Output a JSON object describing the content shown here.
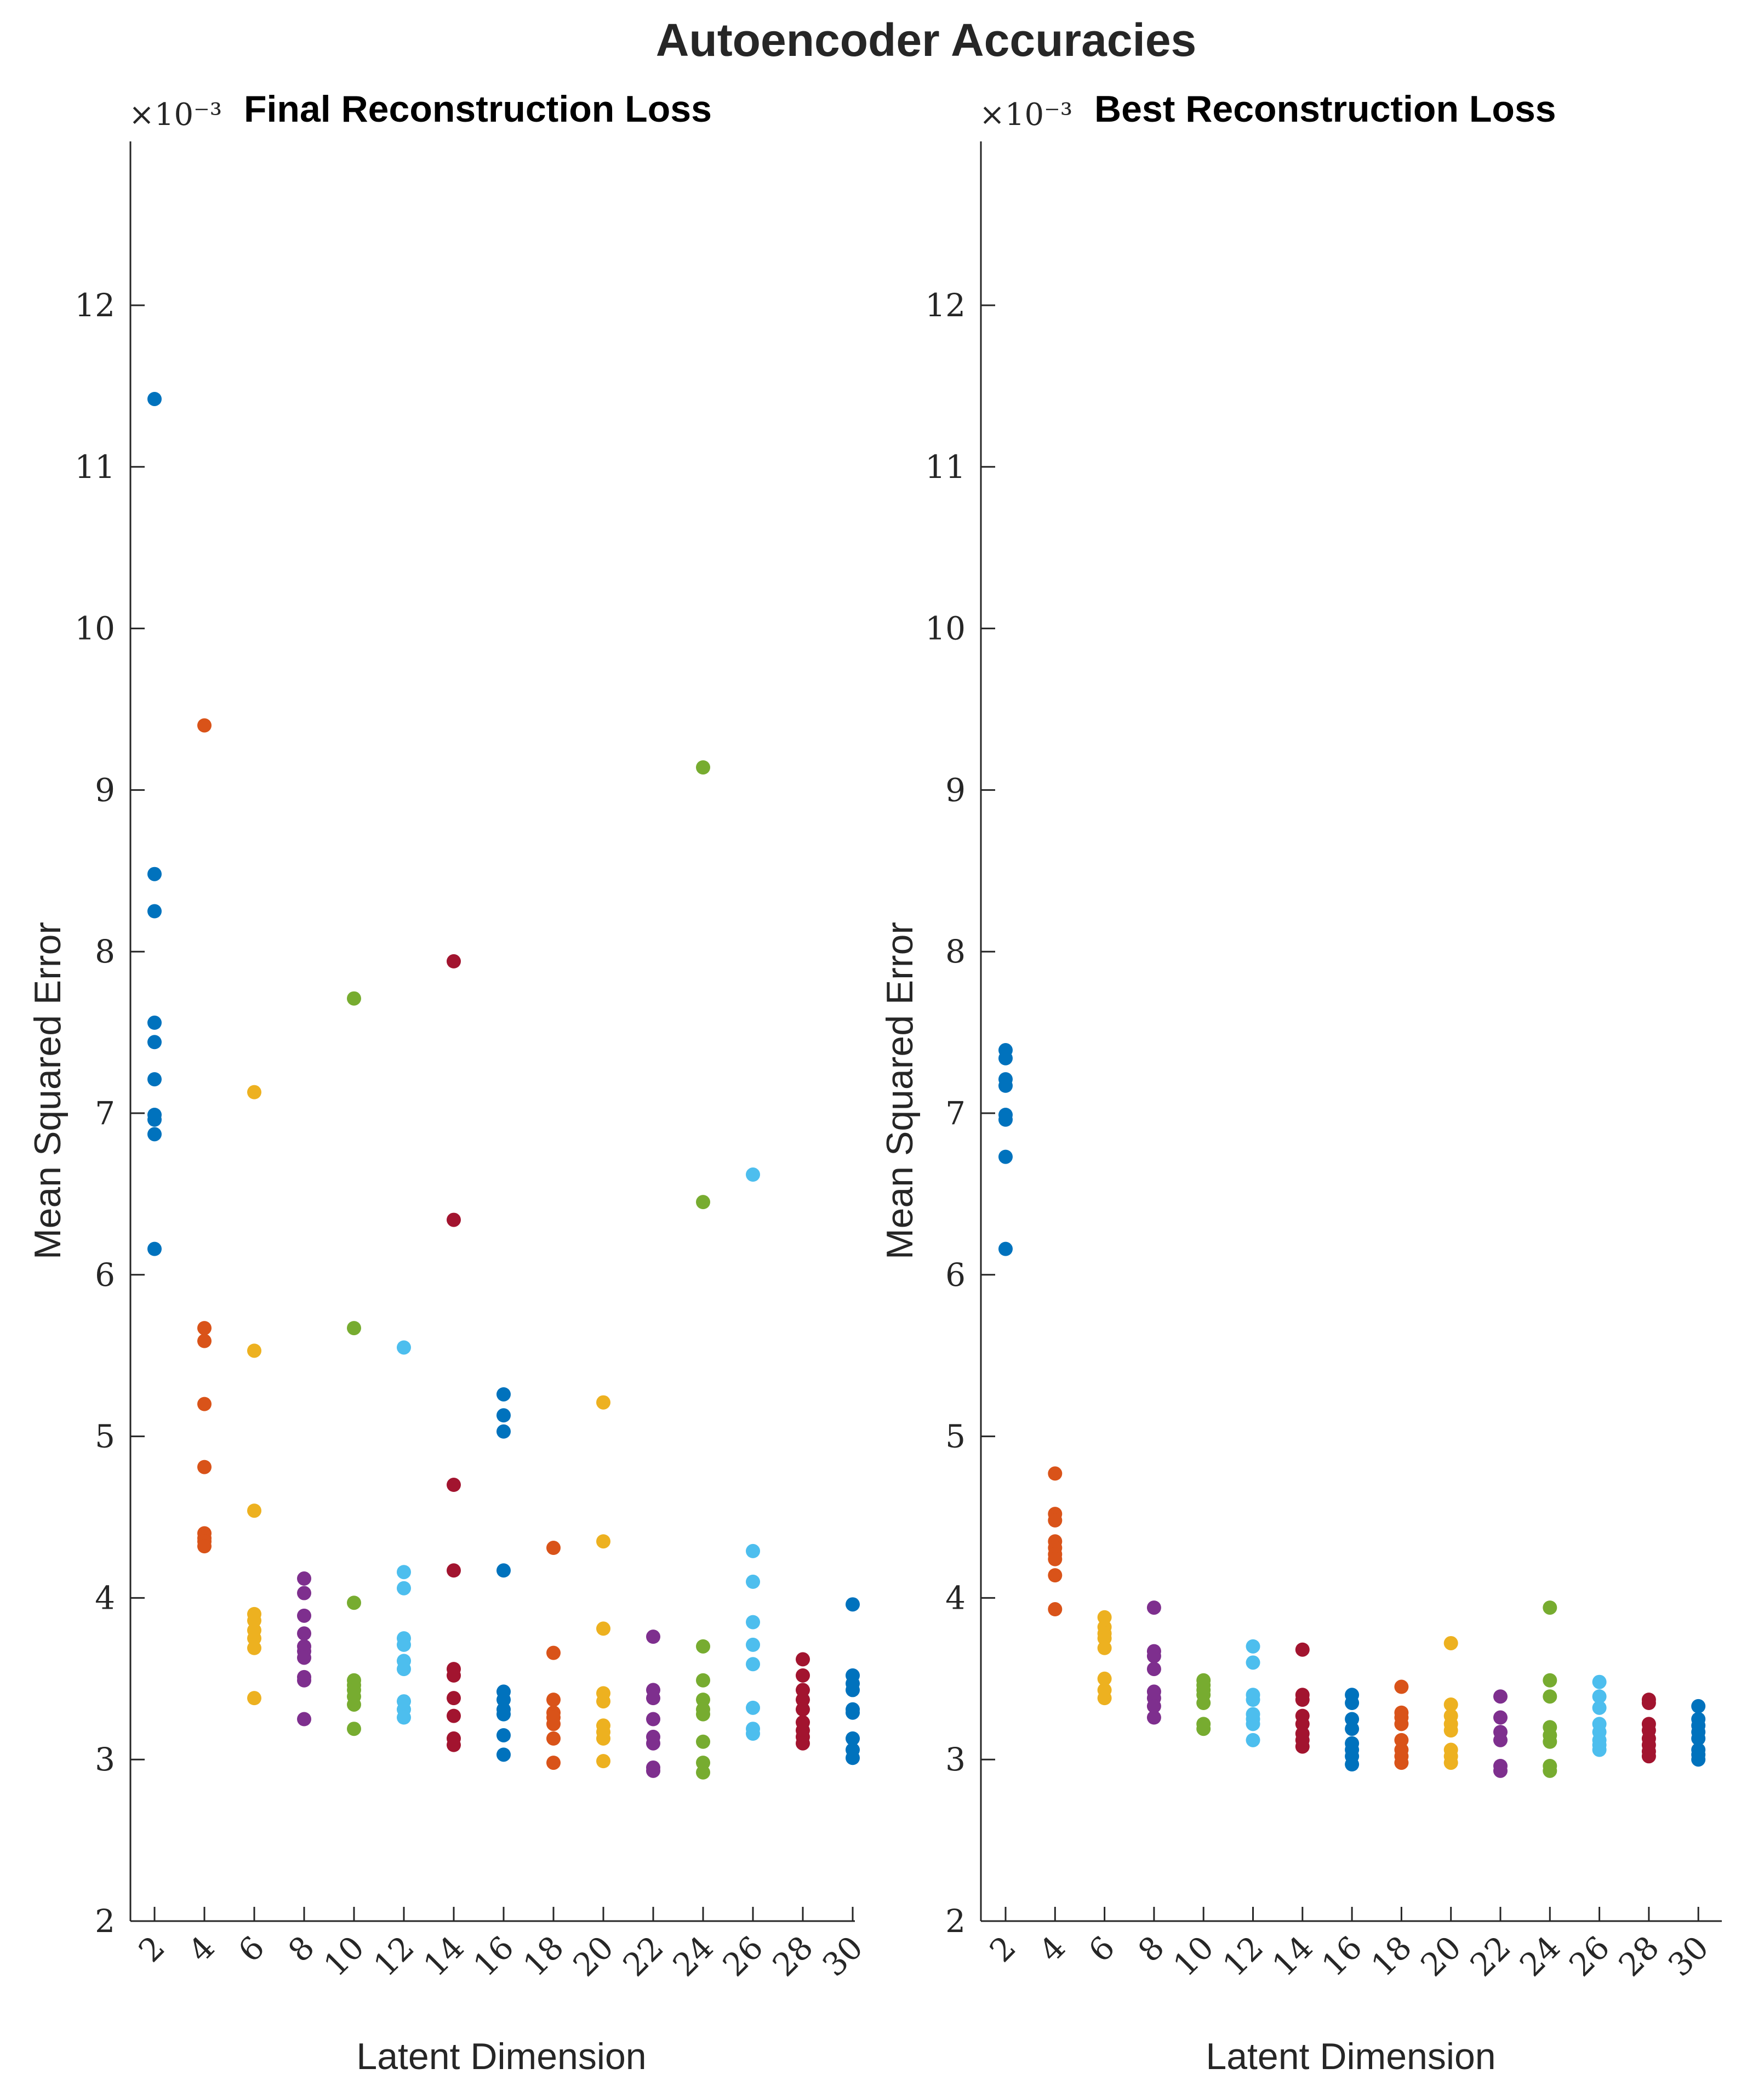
{
  "title": "Autoencoder Accuracies",
  "colors": [
    "#0072BD",
    "#D95319",
    "#EDB120",
    "#7E2F8E",
    "#77AC30",
    "#4DBEEE",
    "#A2142F"
  ],
  "chart_data": [
    {
      "type": "scatter",
      "title": "Final Reconstruction Loss",
      "xlabel": "Latent Dimension",
      "ylabel": "Mean Squared Error",
      "exponent_label": "×10⁻³",
      "ylim": [
        2,
        13
      ],
      "yticks": [
        "2",
        "3",
        "4",
        "5",
        "6",
        "7",
        "8",
        "9",
        "10",
        "11",
        "12"
      ],
      "xticks": [
        "2",
        "4",
        "6",
        "8",
        "10",
        "12",
        "14",
        "16",
        "18",
        "20",
        "22",
        "24",
        "26",
        "28",
        "30"
      ],
      "series": [
        {
          "x": 2,
          "values": [
            11.42,
            8.48,
            8.25,
            7.56,
            7.44,
            7.21,
            6.99,
            6.96,
            6.87,
            6.16
          ]
        },
        {
          "x": 4,
          "values": [
            9.4,
            5.67,
            5.59,
            5.2,
            4.81,
            4.4,
            4.37,
            4.35,
            4.32
          ]
        },
        {
          "x": 6,
          "values": [
            7.13,
            5.53,
            4.54,
            3.9,
            3.86,
            3.8,
            3.75,
            3.69,
            3.38
          ]
        },
        {
          "x": 8,
          "values": [
            4.12,
            4.03,
            3.89,
            3.78,
            3.7,
            3.67,
            3.63,
            3.51,
            3.49,
            3.25
          ]
        },
        {
          "x": 10,
          "values": [
            7.71,
            5.67,
            3.97,
            3.49,
            3.46,
            3.43,
            3.39,
            3.34,
            3.19
          ]
        },
        {
          "x": 12,
          "values": [
            5.55,
            4.16,
            4.06,
            3.75,
            3.71,
            3.61,
            3.56,
            3.36,
            3.31,
            3.26
          ]
        },
        {
          "x": 14,
          "values": [
            7.94,
            6.34,
            4.7,
            4.17,
            3.56,
            3.52,
            3.38,
            3.27,
            3.13,
            3.09
          ]
        },
        {
          "x": 16,
          "values": [
            5.26,
            5.13,
            5.03,
            4.17,
            3.42,
            3.37,
            3.31,
            3.28,
            3.15,
            3.03
          ]
        },
        {
          "x": 18,
          "values": [
            4.31,
            3.66,
            3.37,
            3.29,
            3.26,
            3.22,
            3.13,
            2.98
          ]
        },
        {
          "x": 20,
          "values": [
            5.21,
            4.35,
            3.81,
            3.41,
            3.36,
            3.21,
            3.17,
            3.13,
            2.99
          ]
        },
        {
          "x": 22,
          "values": [
            3.76,
            3.43,
            3.38,
            3.25,
            3.14,
            3.1,
            2.95,
            2.93
          ]
        },
        {
          "x": 24,
          "values": [
            9.14,
            6.45,
            3.7,
            3.49,
            3.37,
            3.31,
            3.28,
            3.11,
            2.98,
            2.92
          ]
        },
        {
          "x": 26,
          "values": [
            6.62,
            4.29,
            4.1,
            3.85,
            3.71,
            3.59,
            3.32,
            3.19,
            3.16
          ]
        },
        {
          "x": 28,
          "values": [
            3.62,
            3.52,
            3.43,
            3.37,
            3.31,
            3.23,
            3.18,
            3.14,
            3.1
          ]
        },
        {
          "x": 30,
          "values": [
            3.96,
            3.52,
            3.47,
            3.43,
            3.31,
            3.29,
            3.13,
            3.06,
            3.01
          ]
        }
      ]
    },
    {
      "type": "scatter",
      "title": "Best Reconstruction Loss",
      "xlabel": "Latent Dimension",
      "ylabel": "Mean Squared Error",
      "exponent_label": "×10⁻³",
      "ylim": [
        2,
        13
      ],
      "yticks": [
        "2",
        "3",
        "4",
        "5",
        "6",
        "7",
        "8",
        "9",
        "10",
        "11",
        "12"
      ],
      "xticks": [
        "2",
        "4",
        "6",
        "8",
        "10",
        "12",
        "14",
        "16",
        "18",
        "20",
        "22",
        "24",
        "26",
        "28",
        "30"
      ],
      "series": [
        {
          "x": 2,
          "values": [
            7.39,
            7.34,
            7.21,
            7.17,
            6.99,
            6.96,
            6.73,
            6.16
          ]
        },
        {
          "x": 4,
          "values": [
            4.77,
            4.52,
            4.48,
            4.35,
            4.31,
            4.27,
            4.24,
            4.14,
            3.93
          ]
        },
        {
          "x": 6,
          "values": [
            3.88,
            3.82,
            3.78,
            3.75,
            3.69,
            3.5,
            3.43,
            3.38
          ]
        },
        {
          "x": 8,
          "values": [
            3.94,
            3.67,
            3.64,
            3.56,
            3.42,
            3.38,
            3.33,
            3.26
          ]
        },
        {
          "x": 10,
          "values": [
            3.49,
            3.46,
            3.43,
            3.4,
            3.35,
            3.22,
            3.19
          ]
        },
        {
          "x": 12,
          "values": [
            3.7,
            3.6,
            3.4,
            3.37,
            3.28,
            3.25,
            3.22,
            3.12
          ]
        },
        {
          "x": 14,
          "values": [
            3.68,
            3.4,
            3.37,
            3.27,
            3.22,
            3.16,
            3.12,
            3.08
          ]
        },
        {
          "x": 16,
          "values": [
            3.4,
            3.35,
            3.25,
            3.19,
            3.1,
            3.06,
            3.02,
            2.97
          ]
        },
        {
          "x": 18,
          "values": [
            3.45,
            3.29,
            3.26,
            3.22,
            3.12,
            3.06,
            3.02,
            2.98
          ]
        },
        {
          "x": 20,
          "values": [
            3.72,
            3.34,
            3.27,
            3.22,
            3.18,
            3.06,
            3.02,
            2.98
          ]
        },
        {
          "x": 22,
          "values": [
            3.39,
            3.26,
            3.17,
            3.12,
            2.96,
            2.93
          ]
        },
        {
          "x": 24,
          "values": [
            3.94,
            3.49,
            3.39,
            3.2,
            3.15,
            3.11,
            2.96,
            2.93
          ]
        },
        {
          "x": 26,
          "values": [
            3.48,
            3.39,
            3.32,
            3.22,
            3.17,
            3.12,
            3.09,
            3.06
          ]
        },
        {
          "x": 28,
          "values": [
            3.37,
            3.35,
            3.22,
            3.18,
            3.13,
            3.09,
            3.05,
            3.02
          ]
        },
        {
          "x": 30,
          "values": [
            3.33,
            3.25,
            3.21,
            3.17,
            3.13,
            3.06,
            3.03,
            3.0
          ]
        }
      ]
    }
  ]
}
